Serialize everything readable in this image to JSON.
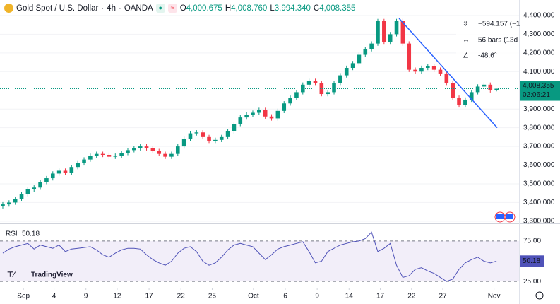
{
  "header": {
    "symbol": "Gold Spot / U.S. Dollar",
    "interval": "4h",
    "exchange": "OANDA",
    "o": "O",
    "open": "4,000.675",
    "h": "H",
    "high": "4,008.760",
    "l": "L",
    "low": "3,994.340",
    "c": "C",
    "close": "4,008.355",
    "countdown": "02:06:21"
  },
  "measure": {
    "price_change": "−594.157 (−1",
    "bars": "56 bars (13d",
    "angle": "-48.6°"
  },
  "watermark": "TradingView",
  "chart_data": [
    {
      "type": "candlestick",
      "up_color": "#089981",
      "down_color": "#f23645",
      "xlim": [
        -0.45,
        82.6
      ],
      "ylim": [
        3292,
        4483
      ],
      "yticks": [
        {
          "value": 4400,
          "label": "4,400.000"
        },
        {
          "value": 4300,
          "label": "4,300.000"
        },
        {
          "value": 4200,
          "label": "4,200.000"
        },
        {
          "value": 4100,
          "label": "4,100.000"
        },
        {
          "value": 3900,
          "label": "3,900.000"
        },
        {
          "value": 3800,
          "label": "3,800.000"
        },
        {
          "value": 3700,
          "label": "3,700.000"
        },
        {
          "value": 3600,
          "label": "3,600.000"
        },
        {
          "value": 3500,
          "label": "3,500.000"
        },
        {
          "value": 3400,
          "label": "3,400.000"
        },
        {
          "value": 3300,
          "label": "3,300.000"
        }
      ],
      "open": [
        3380,
        3390,
        3400,
        3420,
        3445,
        3470,
        3480,
        3510,
        3530,
        3555,
        3570,
        3560,
        3590,
        3610,
        3630,
        3650,
        3660,
        3655,
        3645,
        3650,
        3665,
        3680,
        3690,
        3700,
        3690,
        3675,
        3660,
        3645,
        3660,
        3700,
        3740,
        3770,
        3775,
        3750,
        3730,
        3735,
        3750,
        3780,
        3820,
        3855,
        3870,
        3880,
        3895,
        3860,
        3850,
        3890,
        3930,
        3960,
        3990,
        4030,
        4050,
        4040,
        3980,
        3990,
        4040,
        4080,
        4120,
        4145,
        4190,
        4220,
        4250,
        4370,
        4260,
        4300,
        4370,
        4250,
        4110,
        4100,
        4120,
        4130,
        4110,
        4090,
        4040,
        3960,
        3920,
        3950,
        3990,
        4020,
        4030,
        4000.675
      ],
      "high": [
        3402,
        3412,
        3432,
        3457,
        3482,
        3492,
        3522,
        3542,
        3567,
        3582,
        3582,
        3602,
        3622,
        3642,
        3662,
        3672,
        3672,
        3667,
        3662,
        3677,
        3692,
        3702,
        3712,
        3712,
        3702,
        3687,
        3672,
        3672,
        3712,
        3752,
        3782,
        3787,
        3787,
        3762,
        3747,
        3762,
        3792,
        3832,
        3867,
        3882,
        3892,
        3907,
        3907,
        3872,
        3902,
        3942,
        3972,
        4002,
        4042,
        4062,
        4062,
        4052,
        4002,
        4052,
        4092,
        4132,
        4157,
        4202,
        4232,
        4262,
        4382,
        4382,
        4312,
        4382,
        4382,
        4262,
        4122,
        4132,
        4142,
        4142,
        4122,
        4102,
        4052,
        3972,
        3962,
        4002,
        4032,
        4042,
        4042,
        4008.76
      ],
      "low": [
        3368,
        3378,
        3388,
        3408,
        3433,
        3458,
        3468,
        3498,
        3518,
        3543,
        3548,
        3548,
        3578,
        3598,
        3618,
        3638,
        3643,
        3633,
        3633,
        3638,
        3653,
        3668,
        3678,
        3678,
        3663,
        3648,
        3633,
        3633,
        3648,
        3688,
        3728,
        3758,
        3738,
        3718,
        3718,
        3723,
        3738,
        3768,
        3808,
        3843,
        3858,
        3868,
        3848,
        3838,
        3838,
        3878,
        3918,
        3948,
        3978,
        4018,
        4028,
        3968,
        3968,
        3978,
        4028,
        4068,
        4108,
        4133,
        4178,
        4208,
        4238,
        4248,
        4248,
        4288,
        4238,
        4098,
        4088,
        4088,
        4108,
        4098,
        4078,
        4028,
        3948,
        3908,
        3908,
        3938,
        3978,
        4008,
        3988,
        3994.34
      ],
      "close": [
        3390,
        3400,
        3420,
        3445,
        3470,
        3480,
        3510,
        3530,
        3555,
        3570,
        3560,
        3590,
        3610,
        3630,
        3650,
        3660,
        3655,
        3645,
        3650,
        3665,
        3680,
        3690,
        3700,
        3690,
        3675,
        3660,
        3645,
        3660,
        3700,
        3740,
        3770,
        3775,
        3750,
        3730,
        3735,
        3750,
        3780,
        3820,
        3855,
        3870,
        3880,
        3895,
        3860,
        3850,
        3890,
        3930,
        3960,
        3990,
        4030,
        4050,
        4040,
        3980,
        3990,
        4040,
        4080,
        4120,
        4145,
        4190,
        4220,
        4250,
        4370,
        4260,
        4300,
        4370,
        4250,
        4110,
        4100,
        4120,
        4130,
        4110,
        4090,
        4040,
        3960,
        3920,
        3950,
        3990,
        4020,
        4030,
        4000.675,
        4008.355
      ],
      "trendline": {
        "color": "#2962ff",
        "x": [
          63.4,
          79.1
        ],
        "y": [
          4385,
          3800
        ]
      }
    },
    {
      "type": "line",
      "title": "RSI",
      "color": "#4f52b8",
      "band_color": "#7e57c2",
      "xlim": [
        -0.45,
        82.6
      ],
      "ylim": [
        19,
        95
      ],
      "yticks": [
        {
          "value": 75,
          "label": "75.00"
        },
        {
          "value": 25,
          "label": "25.00"
        }
      ],
      "xticks": [
        {
          "value": 3.3,
          "label": "Sep"
        },
        {
          "value": 8.2,
          "label": "4"
        },
        {
          "value": 13.3,
          "label": "9"
        },
        {
          "value": 18.3,
          "label": "12"
        },
        {
          "value": 23.4,
          "label": "17"
        },
        {
          "value": 28.5,
          "label": "22"
        },
        {
          "value": 33.5,
          "label": "25"
        },
        {
          "value": 40.1,
          "label": "Oct"
        },
        {
          "value": 45.2,
          "label": "6"
        },
        {
          "value": 50.3,
          "label": "9"
        },
        {
          "value": 55.4,
          "label": "14"
        },
        {
          "value": 60.4,
          "label": "17"
        },
        {
          "value": 65.4,
          "label": "22"
        },
        {
          "value": 70.4,
          "label": "27"
        },
        {
          "value": 78.6,
          "label": "Nov"
        }
      ],
      "values": [
        60,
        65,
        68,
        70,
        72,
        65,
        70,
        68,
        66,
        70,
        62,
        65,
        66,
        67,
        68,
        64,
        58,
        55,
        60,
        64,
        66,
        66,
        65,
        58,
        52,
        48,
        45,
        50,
        60,
        66,
        68,
        62,
        50,
        45,
        48,
        55,
        64,
        70,
        72,
        70,
        68,
        60,
        52,
        58,
        65,
        68,
        70,
        72,
        74,
        62,
        48,
        50,
        62,
        66,
        70,
        72,
        74,
        75,
        78,
        86,
        62,
        66,
        72,
        45,
        30,
        32,
        40,
        42,
        38,
        35,
        30,
        25,
        28,
        40,
        48,
        52,
        55,
        50,
        48,
        50.18
      ]
    }
  ]
}
